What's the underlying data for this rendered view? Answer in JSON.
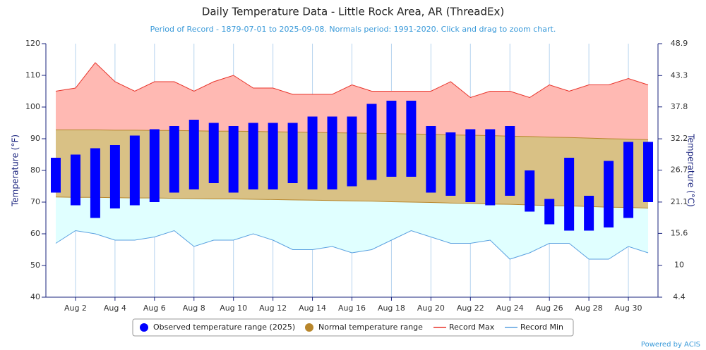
{
  "chart_data": {
    "type": "columnrange",
    "title": "Daily Temperature Data - Little Rock Area, AR (ThreadEx)",
    "subtitle": "Period of Record - 1879-07-01 to 2025-09-08. Normals period: 1991-2020. Click and drag to zoom chart.",
    "y_label": "Temperature (°F)",
    "y2_label": "Temperature (°C)",
    "credits": "Powered by ACIS",
    "categories": [
      null,
      "Aug 2",
      null,
      "Aug 4",
      null,
      "Aug 6",
      null,
      "Aug 8",
      null,
      "Aug 10",
      null,
      "Aug 12",
      null,
      "Aug 14",
      null,
      "Aug 16",
      null,
      "Aug 18",
      null,
      "Aug 20",
      null,
      "Aug 22",
      null,
      "Aug 24",
      null,
      "Aug 26",
      null,
      "Aug 28",
      null,
      "Aug 30",
      null
    ],
    "ylim": [
      40,
      120
    ],
    "yticks": [
      40,
      50,
      60,
      70,
      80,
      90,
      100,
      110,
      120
    ],
    "y2lim": [
      4.4,
      48.9
    ],
    "y2ticks": [
      4.4,
      10,
      15.6,
      21.1,
      26.7,
      32.2,
      37.8,
      43.3,
      48.9
    ],
    "grid": true,
    "series": [
      {
        "name": "Observed temperature range (2025)",
        "type": "columnrange",
        "color": "#0000ff",
        "values": [
          [
            73,
            84
          ],
          [
            69,
            85
          ],
          [
            65,
            87
          ],
          [
            68,
            88
          ],
          [
            69,
            91
          ],
          [
            70,
            93
          ],
          [
            73,
            94
          ],
          [
            74,
            96
          ],
          [
            76,
            95
          ],
          [
            73,
            94
          ],
          [
            74,
            95
          ],
          [
            74,
            95
          ],
          [
            76,
            95
          ],
          [
            74,
            97
          ],
          [
            74,
            97
          ],
          [
            75,
            97
          ],
          [
            77,
            101
          ],
          [
            78,
            102
          ],
          [
            78,
            102
          ],
          [
            73,
            94
          ],
          [
            72,
            92
          ],
          [
            70,
            93
          ],
          [
            69,
            93
          ],
          [
            72,
            94
          ],
          [
            67,
            80
          ],
          [
            63,
            71
          ],
          [
            61,
            84
          ],
          [
            61,
            72
          ],
          [
            62,
            83
          ],
          [
            65,
            89
          ],
          [
            70,
            89
          ]
        ]
      },
      {
        "name": "Normal temperature range",
        "type": "arearange",
        "color": "#b8862b",
        "values": [
          [
            71.6,
            92.8
          ],
          [
            71.5,
            92.8
          ],
          [
            71.5,
            92.8
          ],
          [
            71.4,
            92.7
          ],
          [
            71.3,
            92.7
          ],
          [
            71.3,
            92.6
          ],
          [
            71.2,
            92.6
          ],
          [
            71.1,
            92.5
          ],
          [
            71.0,
            92.4
          ],
          [
            71.0,
            92.4
          ],
          [
            70.9,
            92.3
          ],
          [
            70.8,
            92.2
          ],
          [
            70.7,
            92.1
          ],
          [
            70.6,
            92.0
          ],
          [
            70.5,
            91.9
          ],
          [
            70.4,
            91.8
          ],
          [
            70.3,
            91.7
          ],
          [
            70.1,
            91.6
          ],
          [
            70.0,
            91.5
          ],
          [
            69.9,
            91.4
          ],
          [
            69.7,
            91.2
          ],
          [
            69.6,
            91.1
          ],
          [
            69.4,
            91.0
          ],
          [
            69.3,
            90.8
          ],
          [
            69.1,
            90.7
          ],
          [
            68.9,
            90.5
          ],
          [
            68.8,
            90.4
          ],
          [
            68.6,
            90.2
          ],
          [
            68.4,
            90.0
          ],
          [
            68.3,
            89.9
          ],
          [
            68.1,
            89.7
          ]
        ]
      },
      {
        "name": "Record Max",
        "type": "line",
        "color": "#e8332a",
        "values": [
          105,
          106,
          114,
          108,
          105,
          108,
          108,
          105,
          108,
          110,
          106,
          106,
          104,
          104,
          104,
          107,
          105,
          105,
          105,
          105,
          108,
          103,
          105,
          105,
          103,
          107,
          105,
          107,
          107,
          109,
          107
        ]
      },
      {
        "name": "Record Min",
        "type": "line",
        "color": "#5aa0e0",
        "values": [
          57,
          61,
          60,
          58,
          58,
          59,
          61,
          56,
          58,
          58,
          60,
          58,
          55,
          55,
          56,
          54,
          55,
          58,
          61,
          59,
          57,
          57,
          58,
          52,
          54,
          57,
          57,
          52,
          52,
          56,
          54
        ]
      }
    ]
  }
}
